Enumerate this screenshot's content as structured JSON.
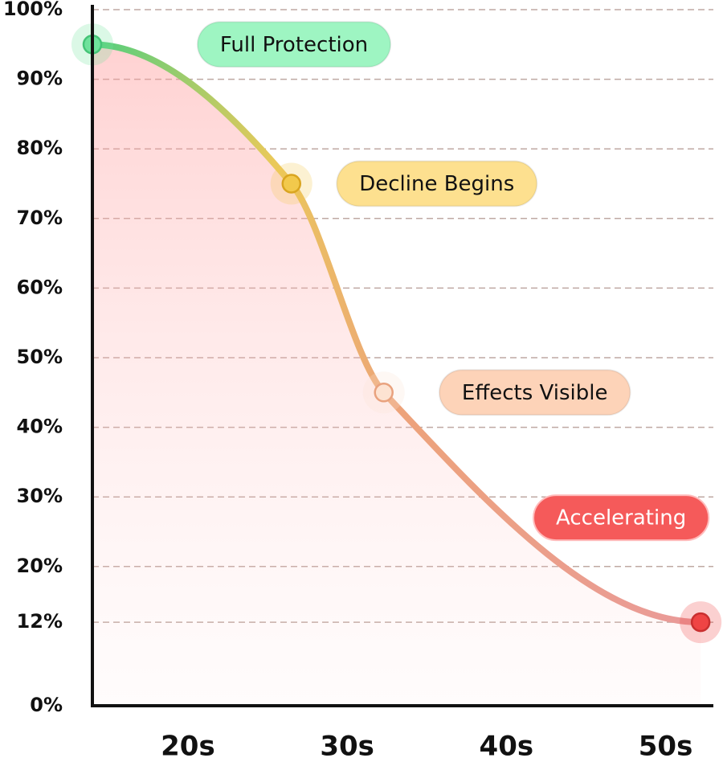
{
  "chart_data": {
    "type": "line",
    "x": [
      14,
      26.5,
      32.3,
      52.2
    ],
    "xlim": [
      14,
      53
    ],
    "xticks": [
      {
        "value": 20,
        "label": "20s"
      },
      {
        "value": 30,
        "label": "30s"
      },
      {
        "value": 40,
        "label": "40s"
      },
      {
        "value": 50,
        "label": "50s"
      }
    ],
    "ylim": [
      0,
      100
    ],
    "yticks": [
      {
        "value": 0,
        "label": "0%"
      },
      {
        "value": 12,
        "label": "12%"
      },
      {
        "value": 20,
        "label": "20%"
      },
      {
        "value": 30,
        "label": "30%"
      },
      {
        "value": 40,
        "label": "40%"
      },
      {
        "value": 50,
        "label": "50%"
      },
      {
        "value": 60,
        "label": "60%"
      },
      {
        "value": 70,
        "label": "70%"
      },
      {
        "value": 80,
        "label": "80%"
      },
      {
        "value": 90,
        "label": "90%"
      },
      {
        "value": 100,
        "label": "100%"
      }
    ],
    "grid": true,
    "series": [
      {
        "values": [
          95,
          75,
          45,
          12
        ],
        "point_colors": [
          "#6fe29c",
          "#f2c94c",
          "#fde3d2",
          "#ef4444"
        ],
        "labels": [
          "Full Protection",
          "Decline Begins",
          "Effects Visible",
          "Accelerating"
        ],
        "label_colors": [
          "#9ef5c2",
          "#fde08f",
          "#fdd3b8",
          "#f55a5a"
        ]
      }
    ]
  }
}
